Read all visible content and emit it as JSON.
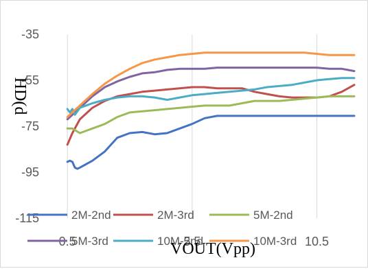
{
  "chart_data": {
    "type": "line",
    "xlabel": "VOUT(Vpp)",
    "ylabel": "HD(d",
    "xlim": [
      0,
      12
    ],
    "ylim": [
      -115,
      -35
    ],
    "yticks": [
      -35,
      -55,
      -75,
      -95,
      -115
    ],
    "xticks": [
      0.5,
      5.5,
      10.5
    ],
    "x_tick_labels": [
      "0.5",
      "5.5",
      "10.5"
    ],
    "grid": "vertical",
    "legend_position": "bottom",
    "series": [
      {
        "name": "2M-2nd",
        "color": "#4472C4",
        "x": [
          0.5,
          0.6,
          0.7,
          0.8,
          0.9,
          1.0,
          1.5,
          2.0,
          2.5,
          3.0,
          3.5,
          4.0,
          4.5,
          5.0,
          5.5,
          6.0,
          6.5,
          7.0,
          7.5,
          8.0,
          8.5,
          9.0,
          9.5,
          10.0,
          10.5,
          11.0,
          11.5,
          12.0
        ],
        "values": [
          -90.5,
          -90,
          -90.5,
          -93,
          -93.5,
          -93,
          -90,
          -86,
          -80,
          -78,
          -77.5,
          -78.5,
          -78,
          -76,
          -74,
          -71.5,
          -70.5,
          -70.5,
          -70.5,
          -70.5,
          -70.5,
          -70.5,
          -70.5,
          -70.5,
          -70.5,
          -70.5,
          -70.5,
          -70.5
        ]
      },
      {
        "name": "2M-3rd",
        "color": "#C0504D",
        "x": [
          0.5,
          0.7,
          1.0,
          1.5,
          2.0,
          2.5,
          3.0,
          3.5,
          4.0,
          4.5,
          5.0,
          5.5,
          6.0,
          6.5,
          7.0,
          7.5,
          8.0,
          8.5,
          9.0,
          9.5,
          10.0,
          10.5,
          11.0,
          11.5,
          12.0
        ],
        "values": [
          -83,
          -78,
          -72,
          -67,
          -64,
          -62,
          -61,
          -60,
          -59.5,
          -59,
          -58.5,
          -58,
          -58,
          -58.5,
          -58.5,
          -58.5,
          -60,
          -61,
          -62,
          -62.5,
          -62.5,
          -62.5,
          -62,
          -60,
          -57
        ]
      },
      {
        "name": "5M-2nd",
        "color": "#9BBB59",
        "x": [
          0.5,
          0.7,
          1.0,
          1.5,
          2.0,
          2.5,
          3.0,
          3.5,
          4.0,
          4.5,
          5.0,
          5.5,
          6.0,
          6.5,
          7.0,
          7.5,
          8.0,
          8.5,
          9.0,
          9.5,
          10.0,
          10.5,
          11.0,
          11.5,
          12.0
        ],
        "values": [
          -76,
          -76,
          -78,
          -76,
          -74,
          -71,
          -69,
          -68.5,
          -68,
          -67.5,
          -67,
          -66.5,
          -66,
          -66,
          -66,
          -65,
          -64,
          -64,
          -64,
          -63.5,
          -63,
          -62.5,
          -62,
          -62,
          -62
        ]
      },
      {
        "name": "5M-3rd",
        "color": "#8064A2",
        "x": [
          0.5,
          0.7,
          1.0,
          1.5,
          2.0,
          2.5,
          3.0,
          3.5,
          4.0,
          4.5,
          5.0,
          5.5,
          6.0,
          6.5,
          7.0,
          7.5,
          8.0,
          8.5,
          9.0,
          9.5,
          10.0,
          10.5,
          11.0,
          11.5,
          12.0
        ],
        "values": [
          -72,
          -70,
          -67,
          -62,
          -58,
          -55.5,
          -53.5,
          -52,
          -51.5,
          -50.5,
          -50,
          -50,
          -50,
          -49.5,
          -49.5,
          -49.5,
          -49.5,
          -49.5,
          -49.5,
          -49.5,
          -49.5,
          -49.5,
          -50,
          -50,
          -51
        ]
      },
      {
        "name": "10M-2nd",
        "color": "#4BACC6",
        "x": [
          0.5,
          0.6,
          0.7,
          0.8,
          1.0,
          1.5,
          2.0,
          2.5,
          3.0,
          3.5,
          4.0,
          4.5,
          5.0,
          5.5,
          6.0,
          6.5,
          7.0,
          7.5,
          8.0,
          8.5,
          9.0,
          9.5,
          10.0,
          10.5,
          11.0,
          11.5,
          12.0
        ],
        "values": [
          -67.5,
          -69,
          -67.5,
          -70,
          -67,
          -65,
          -63.5,
          -62.5,
          -62,
          -62,
          -62.5,
          -63.5,
          -62.5,
          -61.5,
          -61,
          -60.5,
          -60,
          -59.5,
          -59,
          -58,
          -57.5,
          -57,
          -56,
          -55,
          -54.5,
          -54,
          -54
        ]
      },
      {
        "name": "10M-3rd",
        "color": "#F79646",
        "x": [
          0.5,
          0.7,
          1.0,
          1.5,
          2.0,
          2.5,
          3.0,
          3.5,
          4.0,
          4.5,
          5.0,
          5.5,
          6.0,
          6.5,
          7.0,
          7.5,
          8.0,
          8.5,
          9.0,
          9.5,
          10.0,
          10.5,
          11.0,
          11.5,
          12.0
        ],
        "values": [
          -71,
          -69,
          -66,
          -61,
          -56.5,
          -53,
          -50,
          -47.5,
          -46,
          -45,
          -44,
          -43.5,
          -43,
          -43,
          -43,
          -43,
          -43,
          -43,
          -43,
          -43,
          -43,
          -43.5,
          -44,
          -44,
          -44
        ]
      }
    ]
  }
}
